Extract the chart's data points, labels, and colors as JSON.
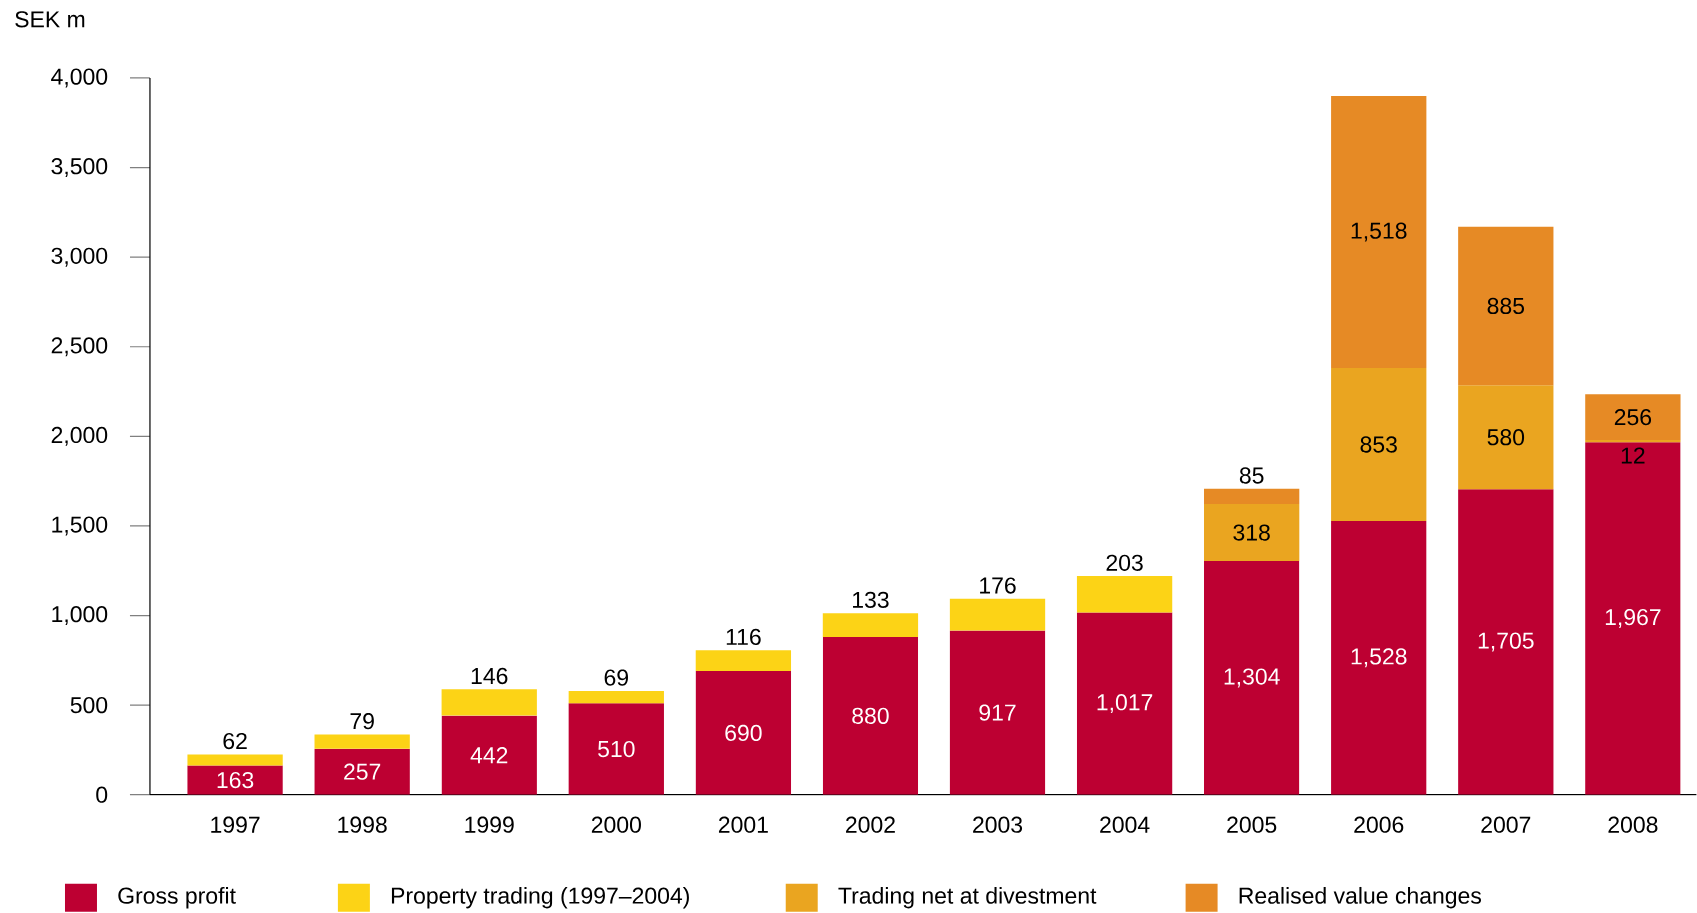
{
  "chart_data": {
    "type": "bar",
    "stacked": true,
    "legend": "bottom",
    "ylabel": "SEK m",
    "categories": [
      "1997",
      "1998",
      "1999",
      "2000",
      "2001",
      "2002",
      "2003",
      "2004",
      "2005",
      "2006",
      "2007",
      "2008"
    ],
    "series": [
      {
        "name": "Gross profit",
        "color": "#bd0032",
        "values": [
          163,
          257,
          442,
          510,
          690,
          880,
          917,
          1017,
          1304,
          1528,
          1705,
          1967
        ],
        "value_labels": [
          "163",
          "257",
          "442",
          "510",
          "690",
          "880",
          "917",
          "1,017",
          "1,304",
          "1,528",
          "1,705",
          "1,967"
        ]
      },
      {
        "name": "Property trading (1997–2004)",
        "color": "#fcd316",
        "values": [
          62,
          79,
          146,
          69,
          116,
          133,
          176,
          203,
          null,
          null,
          null,
          null
        ],
        "value_labels": [
          "62",
          "79",
          "146",
          "69",
          "116",
          "133",
          "176",
          "203",
          null,
          null,
          null,
          null
        ]
      },
      {
        "name": "Trading net at divestment",
        "color": "#eaa520",
        "values": [
          null,
          null,
          null,
          null,
          null,
          null,
          null,
          null,
          318,
          853,
          580,
          12
        ],
        "value_labels": [
          null,
          null,
          null,
          null,
          null,
          null,
          null,
          null,
          "318",
          "853",
          "580",
          "12"
        ]
      },
      {
        "name": "Realised value changes",
        "color": "#e68a25",
        "values": [
          null,
          null,
          null,
          null,
          null,
          null,
          null,
          null,
          85,
          1518,
          885,
          256
        ],
        "value_labels": [
          null,
          null,
          null,
          null,
          null,
          null,
          null,
          null,
          "85",
          "1,518",
          "885",
          "256"
        ]
      }
    ],
    "ylim": [
      0,
      4000
    ],
    "yticks": [
      0,
      {
        "value": 500,
        "label": "500"
      },
      {
        "value": 1000,
        "label": "1,000"
      },
      {
        "value": 1500,
        "label": "1,500"
      },
      {
        "value": 2000,
        "label": "2,000"
      },
      {
        "value": 2500,
        "label": "2,500"
      },
      {
        "value": 3000,
        "label": "3,000"
      },
      {
        "value": 3500,
        "label": "3,500"
      },
      {
        "value": 4000,
        "label": "4,000"
      }
    ]
  }
}
